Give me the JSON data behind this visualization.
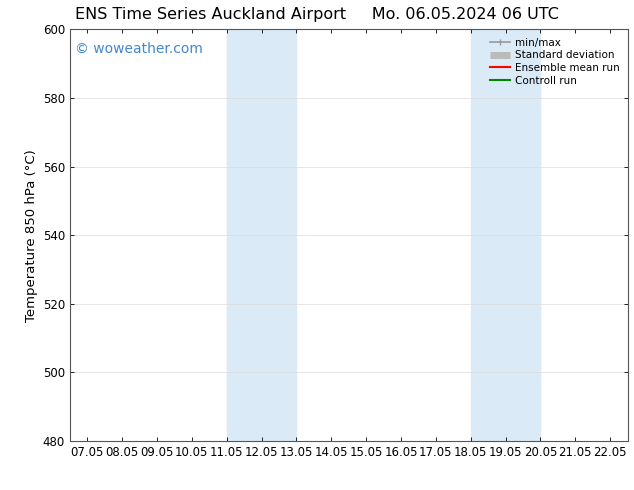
{
  "title_left": "ENS Time Series Auckland Airport",
  "title_right": "Mo. 06.05.2024 06 UTC",
  "ylabel": "Temperature 850 hPa (°C)",
  "xlabel_ticks": [
    "07.05",
    "08.05",
    "09.05",
    "10.05",
    "11.05",
    "12.05",
    "13.05",
    "14.05",
    "15.05",
    "16.05",
    "17.05",
    "18.05",
    "19.05",
    "20.05",
    "21.05",
    "22.05"
  ],
  "x_values": [
    0,
    1,
    2,
    3,
    4,
    5,
    6,
    7,
    8,
    9,
    10,
    11,
    12,
    13,
    14,
    15
  ],
  "ylim": [
    480,
    600
  ],
  "xlim": [
    -0.5,
    15.5
  ],
  "yticks": [
    480,
    500,
    520,
    540,
    560,
    580,
    600
  ],
  "bg_color": "#ffffff",
  "plot_bg_color": "#ffffff",
  "shaded_bands": [
    {
      "x_start": 4.0,
      "x_end": 6.0,
      "color": "#daeaf7"
    },
    {
      "x_start": 11.0,
      "x_end": 13.0,
      "color": "#daeaf7"
    }
  ],
  "watermark_text": "© woweather.com",
  "watermark_color": "#4488cc",
  "legend_entries": [
    {
      "label": "min/max",
      "color": "#999999",
      "lw": 1.2
    },
    {
      "label": "Standard deviation",
      "color": "#bbbbbb",
      "lw": 6
    },
    {
      "label": "Ensemble mean run",
      "color": "#ff0000",
      "lw": 1.5
    },
    {
      "label": "Controll run",
      "color": "#008800",
      "lw": 1.5
    }
  ],
  "title_fontsize": 11.5,
  "tick_fontsize": 8.5,
  "label_fontsize": 9.5,
  "watermark_fontsize": 10,
  "legend_fontsize": 7.5
}
